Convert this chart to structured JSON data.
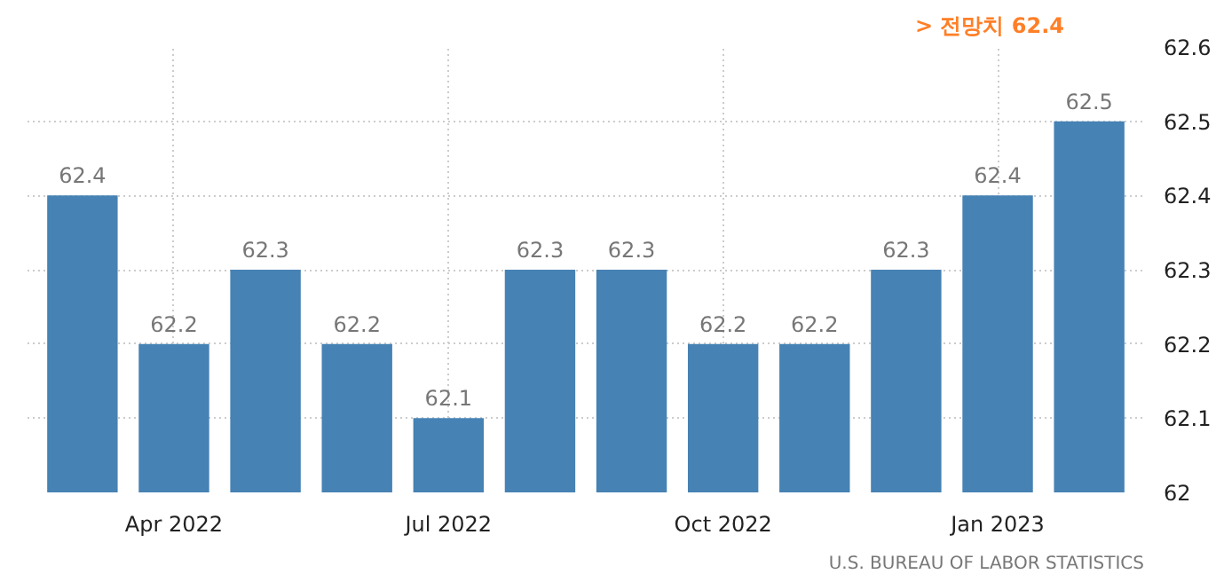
{
  "chart_data": {
    "type": "bar",
    "categories": [
      null,
      "Apr 2022",
      null,
      null,
      "Jul 2022",
      null,
      null,
      "Oct 2022",
      null,
      null,
      "Jan 2023",
      null
    ],
    "values": [
      62.4,
      62.2,
      62.3,
      62.2,
      62.1,
      62.3,
      62.3,
      62.2,
      62.2,
      62.3,
      62.4,
      62.5
    ],
    "color": "#4682b4",
    "ylim": [
      62,
      62.6
    ],
    "yticks": [
      {
        "value": 62,
        "label": "62"
      },
      62.1,
      62.2,
      62.3,
      62.4,
      62.5,
      62.6
    ],
    "grid": true,
    "data_labels": true,
    "annotations": [
      "> 전망치 62.4",
      "U.S. BUREAU OF LABOR STATISTICS"
    ]
  }
}
